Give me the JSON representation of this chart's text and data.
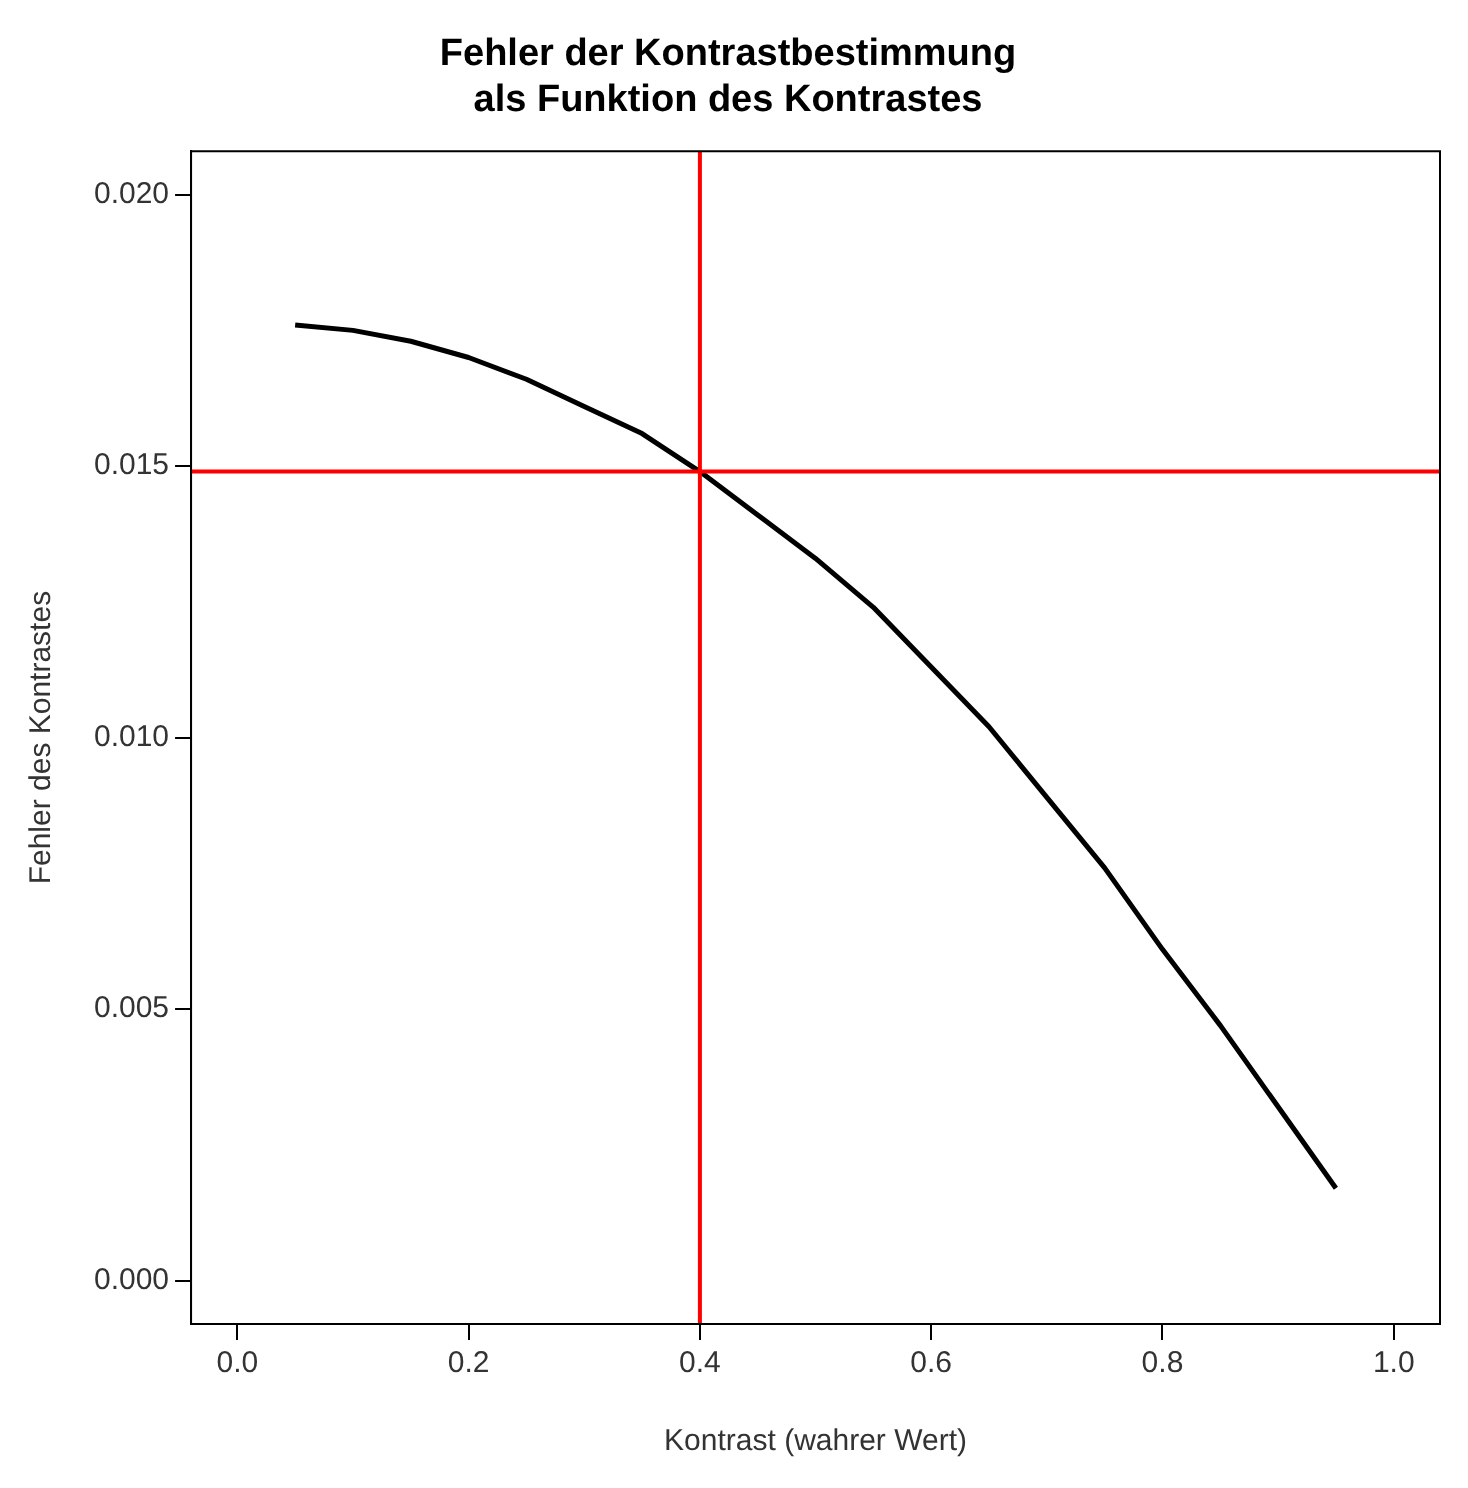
{
  "chart_data": {
    "type": "line",
    "title": "Fehler der Kontrastbestimmung\nals Funktion des Kontrastes",
    "xlabel": "Kontrast (wahrer Wert)",
    "ylabel": "Fehler des Kontrastes",
    "x": [
      0.05,
      0.1,
      0.15,
      0.2,
      0.25,
      0.3,
      0.35,
      0.4,
      0.45,
      0.5,
      0.55,
      0.6,
      0.65,
      0.7,
      0.75,
      0.8,
      0.85,
      0.9,
      0.95
    ],
    "series": [
      {
        "color": "#000000",
        "values": [
          0.0176,
          0.0175,
          0.0173,
          0.017,
          0.0166,
          0.0161,
          0.0156,
          0.0149,
          0.0141,
          0.0133,
          0.0124,
          0.0113,
          0.0102,
          0.0089,
          0.0076,
          0.0061,
          0.0047,
          0.0032,
          0.0017
        ]
      }
    ],
    "xlim": [
      -0.04,
      1.04
    ],
    "xticks": [
      {
        "value": 0,
        "label": "0.0"
      },
      {
        "value": 0.2,
        "label": "0.2"
      },
      {
        "value": 0.4,
        "label": "0.4"
      },
      {
        "value": 0.6,
        "label": "0.6"
      },
      {
        "value": 0.8,
        "label": "0.8"
      },
      {
        "value": 1,
        "label": "1.0"
      }
    ],
    "ylim": [
      -0.0008,
      0.0208
    ],
    "yticks": [
      {
        "value": 0,
        "label": "0.000"
      },
      {
        "value": 0.005,
        "label": "0.005"
      },
      {
        "value": 0.01,
        "label": "0.010"
      },
      {
        "value": 0.015,
        "label": "0.015"
      },
      {
        "value": 0.02,
        "label": "0.020"
      }
    ],
    "ref_lines": [
      {
        "axis": "x",
        "value": 0.4,
        "color": "#ff0000"
      },
      {
        "axis": "y",
        "value": 0.0149,
        "color": "#ff0000"
      }
    ],
    "grid": false,
    "legend": false,
    "marker": "none",
    "line_style": "solid"
  }
}
